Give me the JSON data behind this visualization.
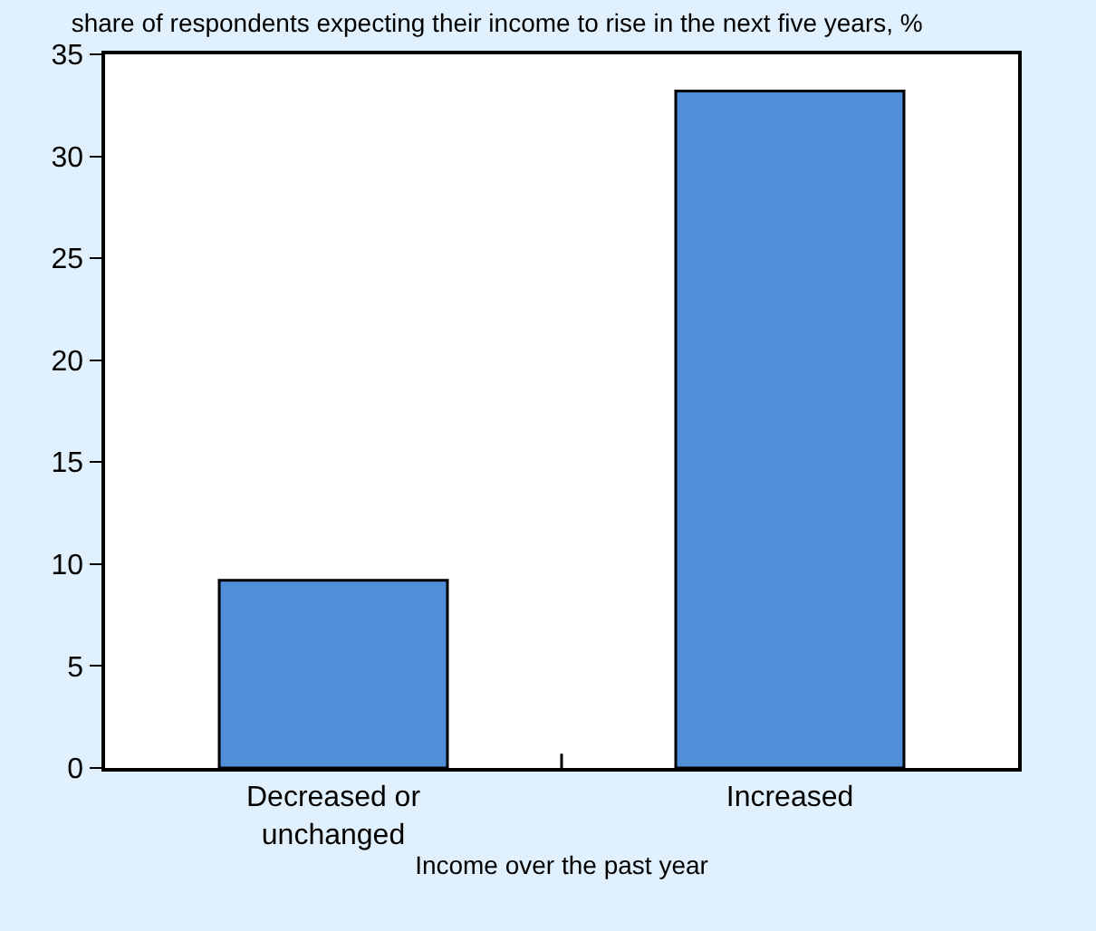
{
  "chart_data": {
    "type": "bar",
    "title": "share of respondents expecting their income to rise in the next five years, %",
    "xlabel": "Income over the past year",
    "categories": [
      "Decreased or unchanged",
      "Increased"
    ],
    "values": [
      9.2,
      33.2
    ],
    "color": "#528fd9",
    "ylim": [
      0,
      35
    ],
    "yticks": [
      0,
      5,
      10,
      15,
      20,
      25,
      30,
      35
    ],
    "grid": false
  }
}
